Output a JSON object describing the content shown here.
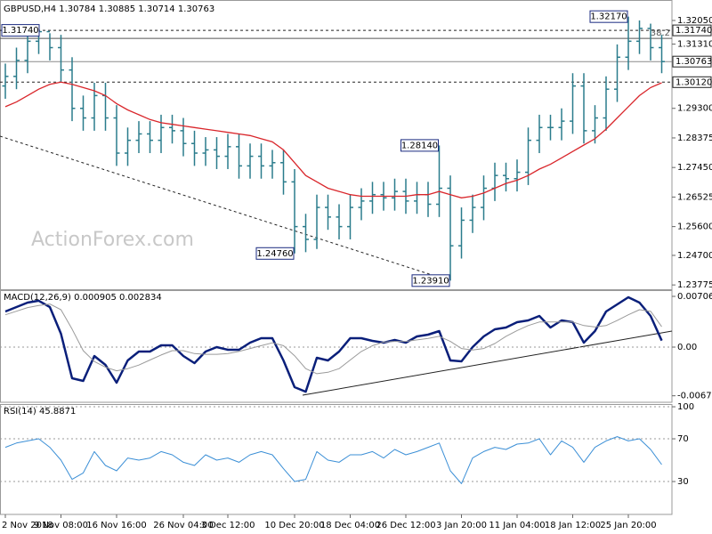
{
  "chart_data": [
    {
      "type": "ohlc",
      "title": "GBPUSD,H4 1.30784 1.30885 1.30714 1.30763",
      "watermark": "ActionForex.com",
      "color": "#2a7c8c",
      "categories": [
        "2 Nov 2018",
        null,
        null,
        null,
        null,
        "9 Nov 08:00",
        null,
        null,
        null,
        null,
        "16 Nov 16:00",
        null,
        null,
        null,
        null,
        null,
        "26 Nov 04:00",
        null,
        null,
        null,
        "3 Dec 12:00",
        null,
        null,
        null,
        null,
        null,
        "10 Dec 20:00",
        null,
        null,
        null,
        null,
        "18 Dec 04:00",
        null,
        null,
        null,
        null,
        "26 Dec 12:00",
        null,
        null,
        null,
        null,
        "3 Jan 20:00",
        null,
        null,
        null,
        null,
        "11 Jan 04:00",
        null,
        null,
        null,
        null,
        "18 Jan 12:00",
        null,
        null,
        null,
        null,
        "25 Jan 20:00",
        null,
        null,
        null
      ],
      "open": [
        1.3,
        1.303,
        1.308,
        1.314,
        1.317,
        1.312,
        1.305,
        1.293,
        1.29,
        1.297,
        1.29,
        1.279,
        1.283,
        1.285,
        1.283,
        1.287,
        1.286,
        1.282,
        1.279,
        1.28,
        1.278,
        1.281,
        1.275,
        1.278,
        1.275,
        1.276,
        1.27,
        1.256,
        1.252,
        1.262,
        1.259,
        1.256,
        1.262,
        1.264,
        1.266,
        1.265,
        1.267,
        1.264,
        1.266,
        1.263,
        1.268,
        1.25,
        1.258,
        1.262,
        1.268,
        1.272,
        1.271,
        1.273,
        1.283,
        1.287,
        1.287,
        1.289,
        1.3,
        1.286,
        1.29,
        1.299,
        1.309,
        1.314,
        1.318,
        1.312
      ],
      "high": [
        1.307,
        1.312,
        1.316,
        1.3174,
        1.3165,
        1.316,
        1.309,
        1.297,
        1.301,
        1.301,
        1.294,
        1.287,
        1.289,
        1.289,
        1.291,
        1.291,
        1.29,
        1.286,
        1.284,
        1.284,
        1.285,
        1.285,
        1.282,
        1.282,
        1.28,
        1.28,
        1.274,
        1.26,
        1.266,
        1.266,
        1.263,
        1.266,
        1.268,
        1.27,
        1.27,
        1.271,
        1.271,
        1.27,
        1.27,
        1.2814,
        1.272,
        1.262,
        1.266,
        1.272,
        1.276,
        1.276,
        1.277,
        1.287,
        1.291,
        1.291,
        1.293,
        1.304,
        1.304,
        1.294,
        1.303,
        1.313,
        1.3217,
        1.3205,
        1.3195,
        1.316
      ],
      "low": [
        1.296,
        1.299,
        1.304,
        1.31,
        1.308,
        1.301,
        1.289,
        1.286,
        1.286,
        1.286,
        1.275,
        1.275,
        1.279,
        1.279,
        1.279,
        1.282,
        1.278,
        1.275,
        1.275,
        1.274,
        1.274,
        1.271,
        1.271,
        1.271,
        1.271,
        1.266,
        1.2476,
        1.248,
        1.249,
        1.255,
        1.252,
        1.252,
        1.258,
        1.26,
        1.261,
        1.261,
        1.26,
        1.26,
        1.259,
        1.259,
        1.2391,
        1.246,
        1.254,
        1.258,
        1.264,
        1.267,
        1.267,
        1.269,
        1.279,
        1.283,
        1.283,
        1.285,
        1.282,
        1.282,
        1.286,
        1.295,
        1.305,
        1.31,
        1.308,
        1.304
      ],
      "close": [
        1.303,
        1.308,
        1.314,
        1.317,
        1.312,
        1.305,
        1.293,
        1.29,
        1.297,
        1.29,
        1.279,
        1.283,
        1.285,
        1.283,
        1.287,
        1.286,
        1.282,
        1.279,
        1.28,
        1.278,
        1.281,
        1.275,
        1.278,
        1.275,
        1.276,
        1.27,
        1.256,
        1.252,
        1.262,
        1.259,
        1.256,
        1.262,
        1.264,
        1.266,
        1.265,
        1.267,
        1.264,
        1.266,
        1.263,
        1.268,
        1.25,
        1.258,
        1.262,
        1.268,
        1.272,
        1.271,
        1.273,
        1.283,
        1.287,
        1.287,
        1.289,
        1.3,
        1.286,
        1.29,
        1.299,
        1.309,
        1.314,
        1.318,
        1.312,
        1.30763
      ],
      "ma": {
        "color": "#d9262b",
        "values": [
          1.2935,
          1.295,
          1.297,
          1.299,
          1.3005,
          1.3012,
          1.3005,
          1.2995,
          1.2985,
          1.297,
          1.2945,
          1.2925,
          1.291,
          1.2895,
          1.2885,
          1.288,
          1.2875,
          1.287,
          1.2865,
          1.286,
          1.2855,
          1.285,
          1.2845,
          1.2835,
          1.2825,
          1.28,
          1.276,
          1.272,
          1.27,
          1.268,
          1.267,
          1.266,
          1.2655,
          1.2655,
          1.2655,
          1.2655,
          1.2655,
          1.266,
          1.266,
          1.267,
          1.266,
          1.265,
          1.2655,
          1.2665,
          1.268,
          1.2695,
          1.2705,
          1.272,
          1.274,
          1.2755,
          1.2775,
          1.2795,
          1.2815,
          1.2835,
          1.2865,
          1.29,
          1.2935,
          1.297,
          1.2995,
          1.301
        ]
      },
      "ylim": [
        1.2364,
        1.3269
      ],
      "yticks": [
        1.23775,
        {
          "value": 1.247,
          "label": "1.24700"
        },
        {
          "value": 1.256,
          "label": "1.25600"
        },
        1.26525,
        {
          "value": 1.2745,
          "label": "1.27450"
        },
        1.28375,
        {
          "value": 1.293,
          "label": "1.29300"
        },
        {
          "value": 1.3131,
          "label": "1.31310"
        },
        {
          "value": 1.3205,
          "label": "1.32050"
        }
      ],
      "levels": [
        {
          "value": 1.3174,
          "label": "1.31740",
          "style": "dashed"
        },
        {
          "value": 1.30763,
          "label": "1.30763",
          "style": "solid"
        },
        {
          "value": 1.3012,
          "label": "1.30120",
          "style": "dashed"
        }
      ],
      "fib_level": {
        "ratio": 38.2,
        "value": 1.3149
      },
      "annotations": [
        {
          "value": 1.3174,
          "label": "1.31740"
        },
        {
          "value": 1.3217,
          "label": "1.32170"
        },
        {
          "value": 1.2814,
          "label": "1.28140"
        },
        {
          "value": 1.2476,
          "label": "1.24760"
        },
        {
          "value": 1.2391,
          "label": "1.23910"
        }
      ]
    },
    {
      "type": "line",
      "title": "MACD(12,26,9) 0.000905 0.002834",
      "ylim": [
        -0.00768,
        0.00793
      ],
      "yticks": [
        -0.006774,
        {
          "value": 0,
          "label": "0.00"
        },
        0.007063
      ],
      "zero_line": true,
      "series": [
        {
          "color": "#0a1f7a",
          "values": [
            0.00496,
            0.00558,
            0.0062,
            0.00645,
            0.00558,
            0.00186,
            -0.00434,
            -0.00471,
            -0.00124,
            -0.00248,
            -0.00496,
            -0.00186,
            -0.00062,
            -0.00062,
            0.00025,
            0.00025,
            -0.00124,
            -0.00223,
            -0.00062,
            0,
            -0.00037,
            -0.00037,
            0.00062,
            0.00124,
            0.00124,
            -0.00186,
            -0.00558,
            -0.0062,
            -0.00149,
            -0.00186,
            -0.00062,
            0.00124,
            0.00124,
            0.00087,
            0.00062,
            0.00099,
            0.00062,
            0.00149,
            0.00174,
            0.00223,
            -0.00186,
            -0.00198,
            0,
            0.00149,
            0.00248,
            0.00273,
            0.00347,
            0.00372,
            0.00434,
            0.00273,
            0.00372,
            0.00347,
            0.00062,
            0.00223,
            0.00496,
            0.00595,
            0.00694,
            0.0062,
            0.00434,
            0.000905
          ]
        },
        {
          "color": "#9a9a9a",
          "values": [
            0.0045,
            0.005,
            0.0055,
            0.0058,
            0.006,
            0.0052,
            0.0025,
            -0.0005,
            -0.002,
            -0.0028,
            -0.0033,
            -0.003,
            -0.0025,
            -0.0018,
            -0.0011,
            -0.0005,
            -0.0005,
            -0.0009,
            -0.001,
            -0.001,
            -0.0009,
            -0.0006,
            -0.0002,
            0.0002,
            0.0006,
            0.0002,
            -0.0012,
            -0.003,
            -0.0037,
            -0.0035,
            -0.003,
            -0.0018,
            -0.0006,
            0.0002,
            0.0007,
            0.0008,
            0.0008,
            0.001,
            0.0012,
            0.0015,
            0.0008,
            -0.0002,
            -0.0004,
            -0.0002,
            0.0005,
            0.0015,
            0.0023,
            0.003,
            0.0035,
            0.0035,
            0.0035,
            0.0035,
            0.003,
            0.0028,
            0.003,
            0.0037,
            0.0045,
            0.0052,
            0.005,
            0.002834
          ]
        }
      ]
    },
    {
      "type": "line",
      "title": "RSI(14) 45.8871",
      "ylim": [
        -0.8,
        101.7
      ],
      "yticks": [
        30,
        70,
        100
      ],
      "grid": true,
      "series": [
        {
          "color": "#3b8fd6",
          "values": [
            62,
            66,
            68,
            70,
            62,
            50,
            32,
            38,
            58,
            45,
            40,
            52,
            50,
            52,
            58,
            55,
            48,
            45,
            55,
            50,
            52,
            48,
            55,
            58,
            55,
            42,
            30,
            32,
            58,
            50,
            48,
            55,
            55,
            58,
            52,
            60,
            55,
            58,
            62,
            66,
            40,
            28,
            52,
            58,
            62,
            60,
            65,
            66,
            70,
            55,
            68,
            62,
            48,
            62,
            68,
            72,
            68,
            70,
            60,
            45.8871
          ]
        }
      ]
    }
  ]
}
